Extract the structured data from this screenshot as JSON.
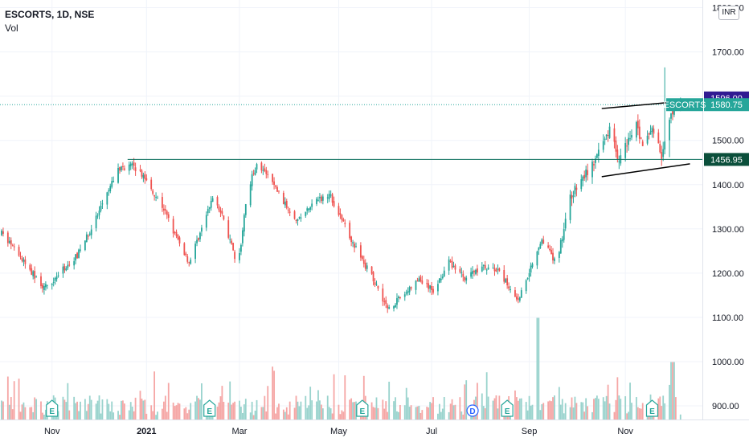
{
  "header": {
    "symbol": "ESCORTS, 1D, NSE",
    "indicator": "Vol"
  },
  "currency_button": "INR",
  "colors": {
    "up": "#26a69a",
    "down": "#ef5350",
    "vol_up": "#99d3cd",
    "vol_down": "#f5a6a5",
    "grid": "#f0f3fa",
    "level_line": "#0a6e5c",
    "trend_line": "#000000",
    "price_tag": "#26a69a",
    "high_tag": "#311b92",
    "level_tag": "#0b4f3b",
    "event_e": "#26a69a",
    "event_d": "#2962ff"
  },
  "tags": {
    "high_value": "1596.00",
    "price_symbol": "ESCORTS",
    "price_value": "1580.75",
    "level_value": "1456.95"
  },
  "events": {
    "earnings_label": "E",
    "dividend_label": "D"
  },
  "chart_data": {
    "type": "candlestick",
    "title": "ESCORTS, 1D, NSE",
    "y_axis": {
      "ticks": [
        "1800.00",
        "1700.00",
        "1600.00",
        "1500.00",
        "1400.00",
        "1300.00",
        "1200.00",
        "1100.00",
        "1000.00",
        "900.00"
      ],
      "range": [
        882,
        1805
      ],
      "position": "right"
    },
    "x_axis": {
      "ticks": [
        "Nov",
        "2021",
        "Mar",
        "May",
        "Jul",
        "Sep",
        "Nov"
      ],
      "bold_ticks": [
        "2021"
      ]
    },
    "date_range": [
      "2020-10-01",
      "2021-11-12"
    ],
    "grid": true,
    "anchors": [
      {
        "date": "2020-10-01",
        "close": 1290
      },
      {
        "date": "2020-10-15",
        "close": 1225
      },
      {
        "date": "2020-10-28",
        "close": 1165
      },
      {
        "date": "2020-11-18",
        "close": 1240
      },
      {
        "date": "2020-12-01",
        "close": 1330
      },
      {
        "date": "2020-12-14",
        "close": 1435
      },
      {
        "date": "2020-12-22",
        "close": 1445
      },
      {
        "date": "2020-12-30",
        "close": 1420
      },
      {
        "date": "2021-01-12",
        "close": 1345
      },
      {
        "date": "2021-01-20",
        "close": 1280
      },
      {
        "date": "2021-01-28",
        "close": 1225
      },
      {
        "date": "2021-02-05",
        "close": 1300
      },
      {
        "date": "2021-02-13",
        "close": 1380
      },
      {
        "date": "2021-02-22",
        "close": 1285
      },
      {
        "date": "2021-02-28",
        "close": 1210
      },
      {
        "date": "2021-03-06",
        "close": 1385
      },
      {
        "date": "2021-03-12",
        "close": 1450
      },
      {
        "date": "2021-03-22",
        "close": 1405
      },
      {
        "date": "2021-03-30",
        "close": 1355
      },
      {
        "date": "2021-04-07",
        "close": 1320
      },
      {
        "date": "2021-04-18",
        "close": 1360
      },
      {
        "date": "2021-04-27",
        "close": 1380
      },
      {
        "date": "2021-05-07",
        "close": 1305
      },
      {
        "date": "2021-05-17",
        "close": 1235
      },
      {
        "date": "2021-05-26",
        "close": 1180
      },
      {
        "date": "2021-06-03",
        "close": 1120
      },
      {
        "date": "2021-06-10",
        "close": 1140
      },
      {
        "date": "2021-06-23",
        "close": 1185
      },
      {
        "date": "2021-07-02",
        "close": 1160
      },
      {
        "date": "2021-07-12",
        "close": 1225
      },
      {
        "date": "2021-07-22",
        "close": 1190
      },
      {
        "date": "2021-08-02",
        "close": 1215
      },
      {
        "date": "2021-08-12",
        "close": 1205
      },
      {
        "date": "2021-08-25",
        "close": 1140
      },
      {
        "date": "2021-09-01",
        "close": 1205
      },
      {
        "date": "2021-09-09",
        "close": 1280
      },
      {
        "date": "2021-09-18",
        "close": 1220
      },
      {
        "date": "2021-09-27",
        "close": 1370
      },
      {
        "date": "2021-10-06",
        "close": 1420
      },
      {
        "date": "2021-10-14",
        "close": 1460
      },
      {
        "date": "2021-10-22",
        "close": 1530
      },
      {
        "date": "2021-10-28",
        "close": 1455
      },
      {
        "date": "2021-11-08",
        "close": 1545
      },
      {
        "date": "2021-11-12",
        "close": 1480
      },
      {
        "date": "2021-11-18",
        "close": 1530
      },
      {
        "date": "2021-11-24",
        "close": 1465
      },
      {
        "date": "2021-11-30",
        "close": 1555
      },
      {
        "date": "2021-12-06",
        "close": 1580.75
      }
    ],
    "volume_range": [
      870,
      1150
    ],
    "volume_peaks": [
      {
        "date": "2021-09-06",
        "value": 1100
      },
      {
        "date": "2021-12-01",
        "value": 1000
      }
    ],
    "levels": [
      {
        "label": "horizontal resistance",
        "value": 1456.95,
        "from": "2020-12-20",
        "to": "2021-12-12"
      },
      {
        "label": "last price",
        "value": 1580.75,
        "style": "dotted"
      }
    ],
    "trendlines": [
      {
        "from": {
          "date": "2021-10-17",
          "value": 1572
        },
        "to": {
          "date": "2021-12-12",
          "value": 1590
        }
      },
      {
        "from": {
          "date": "2021-10-17",
          "value": 1418
        },
        "to": {
          "date": "2021-12-12",
          "value": 1447
        }
      }
    ],
    "events": [
      {
        "type": "E",
        "date": "2020-11-02"
      },
      {
        "type": "E",
        "date": "2021-02-10"
      },
      {
        "type": "E",
        "date": "2021-05-18"
      },
      {
        "type": "D",
        "date": "2021-07-27"
      },
      {
        "type": "E",
        "date": "2021-08-18"
      },
      {
        "type": "E",
        "date": "2021-11-18"
      }
    ]
  }
}
